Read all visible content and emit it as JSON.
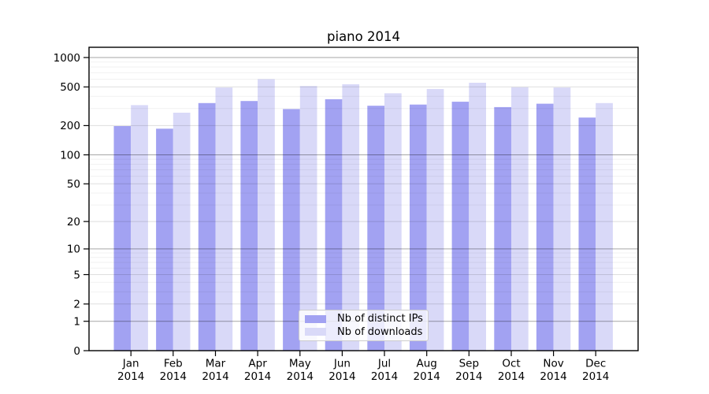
{
  "chart_data": {
    "type": "bar",
    "title": "piano 2014",
    "categories": [
      "Jan",
      "Feb",
      "Mar",
      "Apr",
      "May",
      "Jun",
      "Jul",
      "Aug",
      "Sep",
      "Oct",
      "Nov",
      "Dec"
    ],
    "category_year": "2014",
    "series": [
      {
        "name": "Nb of distinct IPs",
        "color": "#a2a2f2",
        "values": [
          198,
          186,
          341,
          358,
          296,
          374,
          320,
          329,
          352,
          310,
          336,
          242
        ]
      },
      {
        "name": "Nb of downloads",
        "color": "#d9d9f8",
        "values": [
          325,
          272,
          492,
          600,
          510,
          532,
          430,
          476,
          551,
          496,
          492,
          341
        ]
      }
    ],
    "xlabel": "",
    "ylabel": "",
    "y_scale": "log1p",
    "ylim": [
      0,
      1250
    ],
    "y_ticks": [
      0,
      1,
      2,
      5,
      10,
      20,
      50,
      100,
      200,
      500,
      1000
    ],
    "y_minor_ticks": [
      3,
      4,
      6,
      7,
      8,
      9,
      30,
      40,
      60,
      70,
      80,
      90,
      300,
      400,
      600,
      700,
      800,
      900
    ],
    "grid": true,
    "legend_position": "lower-center"
  }
}
